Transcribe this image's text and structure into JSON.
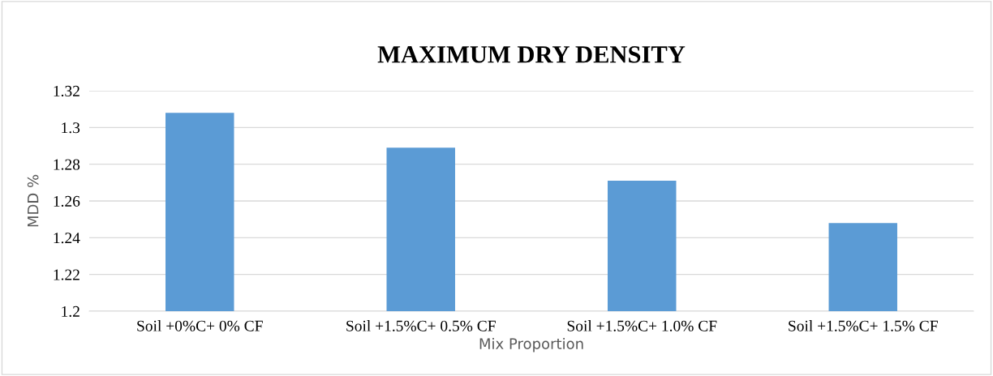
{
  "chart_data": {
    "type": "bar",
    "title": "MAXIMUM DRY DENSITY",
    "xlabel": "Mix Proportion",
    "ylabel": "MDD %",
    "categories": [
      "Soil +0%C+ 0% CF",
      "Soil +1.5%C+ 0.5% CF",
      "Soil +1.5%C+ 1.0% CF",
      "Soil +1.5%C+ 1.5% CF"
    ],
    "values": [
      1.308,
      1.289,
      1.271,
      1.248
    ],
    "color": "#5b9bd5",
    "ylim": [
      1.2,
      1.32
    ],
    "yticks": [
      1.2,
      1.22,
      1.24,
      1.26,
      1.28,
      1.3,
      1.32
    ],
    "grid": "y"
  }
}
